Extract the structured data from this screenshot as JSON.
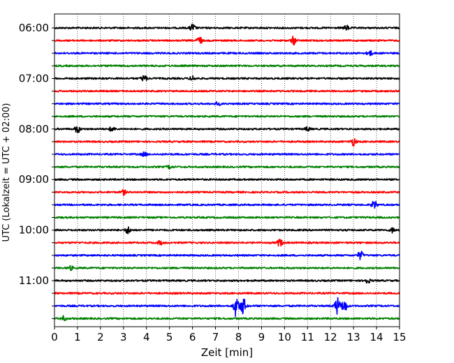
{
  "chart_data": {
    "type": "line",
    "title": "",
    "xlabel": "Zeit  [min]",
    "ylabel": "UTC (Lokalzeit = UTC + 02:00)",
    "xlim": [
      0,
      15
    ],
    "x_ticks": [
      "0",
      "1",
      "2",
      "3",
      "4",
      "5",
      "6",
      "7",
      "8",
      "9",
      "10",
      "11",
      "12",
      "13",
      "14",
      "15"
    ],
    "grid": "vertical dotted lines at each minute",
    "y_tick_labels": [
      "06:00",
      "07:00",
      "08:00",
      "09:00",
      "10:00",
      "11:00"
    ],
    "trace_interval_minutes": 15,
    "color_cycle": [
      "#000000",
      "#ff0000",
      "#0000ff",
      "#008000"
    ],
    "traces": [
      {
        "start": "06:00",
        "color": "#000000",
        "events": [
          {
            "t": 6.0,
            "amp": 1.0
          },
          {
            "t": 12.7,
            "amp": 0.6
          }
        ]
      },
      {
        "start": "06:15",
        "color": "#ff0000",
        "events": [
          {
            "t": 6.3,
            "amp": 1.0
          },
          {
            "t": 10.4,
            "amp": 1.0
          }
        ]
      },
      {
        "start": "06:30",
        "color": "#0000ff",
        "events": [
          {
            "t": 13.7,
            "amp": 0.7
          }
        ]
      },
      {
        "start": "06:45",
        "color": "#008000",
        "events": []
      },
      {
        "start": "07:00",
        "color": "#000000",
        "events": [
          {
            "t": 3.9,
            "amp": 0.8
          },
          {
            "t": 6.0,
            "amp": 0.6
          }
        ]
      },
      {
        "start": "07:15",
        "color": "#ff0000",
        "events": []
      },
      {
        "start": "07:30",
        "color": "#0000ff",
        "events": [
          {
            "t": 7.1,
            "amp": 0.4
          }
        ]
      },
      {
        "start": "07:45",
        "color": "#008000",
        "events": []
      },
      {
        "start": "08:00",
        "color": "#000000",
        "events": [
          {
            "t": 1.0,
            "amp": 1.0
          },
          {
            "t": 2.5,
            "amp": 0.6
          },
          {
            "t": 11.0,
            "amp": 0.5
          }
        ]
      },
      {
        "start": "08:15",
        "color": "#ff0000",
        "events": [
          {
            "t": 13.0,
            "amp": 1.0
          }
        ]
      },
      {
        "start": "08:30",
        "color": "#0000ff",
        "events": [
          {
            "t": 3.9,
            "amp": 0.5
          }
        ]
      },
      {
        "start": "08:45",
        "color": "#008000",
        "events": [
          {
            "t": 5.0,
            "amp": 0.4
          }
        ]
      },
      {
        "start": "09:00",
        "color": "#000000",
        "events": []
      },
      {
        "start": "09:15",
        "color": "#ff0000",
        "events": [
          {
            "t": 3.0,
            "amp": 0.6
          }
        ]
      },
      {
        "start": "09:30",
        "color": "#0000ff",
        "events": [
          {
            "t": 13.9,
            "amp": 1.0
          }
        ]
      },
      {
        "start": "09:45",
        "color": "#008000",
        "events": []
      },
      {
        "start": "10:00",
        "color": "#000000",
        "events": [
          {
            "t": 3.2,
            "amp": 0.9
          },
          {
            "t": 14.7,
            "amp": 0.6
          }
        ]
      },
      {
        "start": "10:15",
        "color": "#ff0000",
        "events": [
          {
            "t": 9.8,
            "amp": 1.0
          },
          {
            "t": 4.6,
            "amp": 0.5
          }
        ]
      },
      {
        "start": "10:30",
        "color": "#0000ff",
        "events": [
          {
            "t": 13.3,
            "amp": 1.1
          }
        ]
      },
      {
        "start": "10:45",
        "color": "#008000",
        "events": [
          {
            "t": 0.7,
            "amp": 0.5
          }
        ]
      },
      {
        "start": "11:00",
        "color": "#000000",
        "events": [
          {
            "t": 13.6,
            "amp": 0.7
          }
        ]
      },
      {
        "start": "11:15",
        "color": "#ff0000",
        "events": []
      },
      {
        "start": "11:30",
        "color": "#0000ff",
        "events": [
          {
            "t": 7.9,
            "amp": 2.8
          },
          {
            "t": 8.2,
            "amp": 2.2
          },
          {
            "t": 12.3,
            "amp": 2.2
          },
          {
            "t": 12.6,
            "amp": 1.6
          }
        ]
      },
      {
        "start": "11:45",
        "color": "#008000",
        "events": [
          {
            "t": 0.4,
            "amp": 0.6
          }
        ]
      }
    ]
  }
}
